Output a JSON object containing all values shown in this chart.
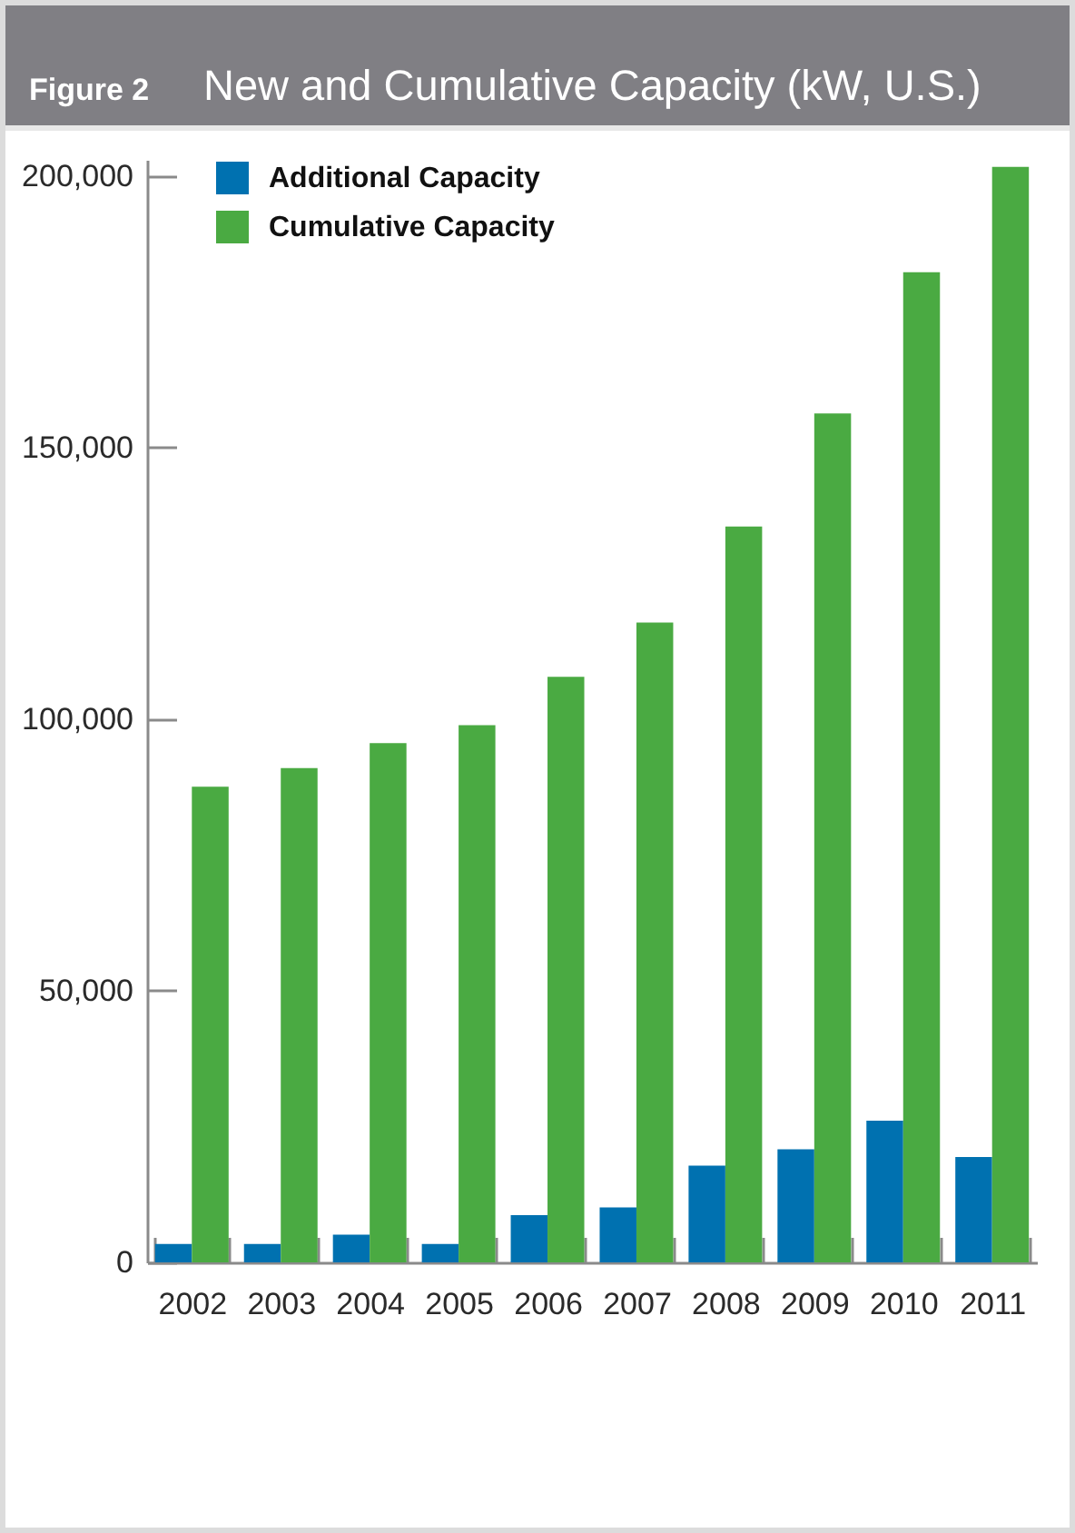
{
  "chart_data": {
    "type": "bar",
    "title": "New and Cumulative Capacity (kW, U.S.)",
    "annotations": [
      "Figure 2"
    ],
    "categories": [
      "2002",
      "2003",
      "2004",
      "2005",
      "2006",
      "2007",
      "2008",
      "2009",
      "2010",
      "2011"
    ],
    "series": [
      {
        "name": "Additional Capacity",
        "color": "#0071b0",
        "values": [
          3400,
          3400,
          5100,
          3400,
          8700,
          10100,
          17800,
          20800,
          26100,
          19400
        ]
      },
      {
        "name": "Cumulative Capacity",
        "color": "#4aaa42",
        "values": [
          87600,
          91000,
          95600,
          98900,
          107800,
          117800,
          135500,
          156300,
          182300,
          201700
        ]
      }
    ],
    "ylim": [
      0,
      203000
    ],
    "yticks": [
      0,
      {
        "value": 50000,
        "label": "50,000"
      },
      {
        "value": 100000,
        "label": "100,000"
      },
      {
        "value": 150000,
        "label": "150,000"
      },
      {
        "value": 200000,
        "label": "200,000"
      }
    ],
    "legend": "top left"
  }
}
